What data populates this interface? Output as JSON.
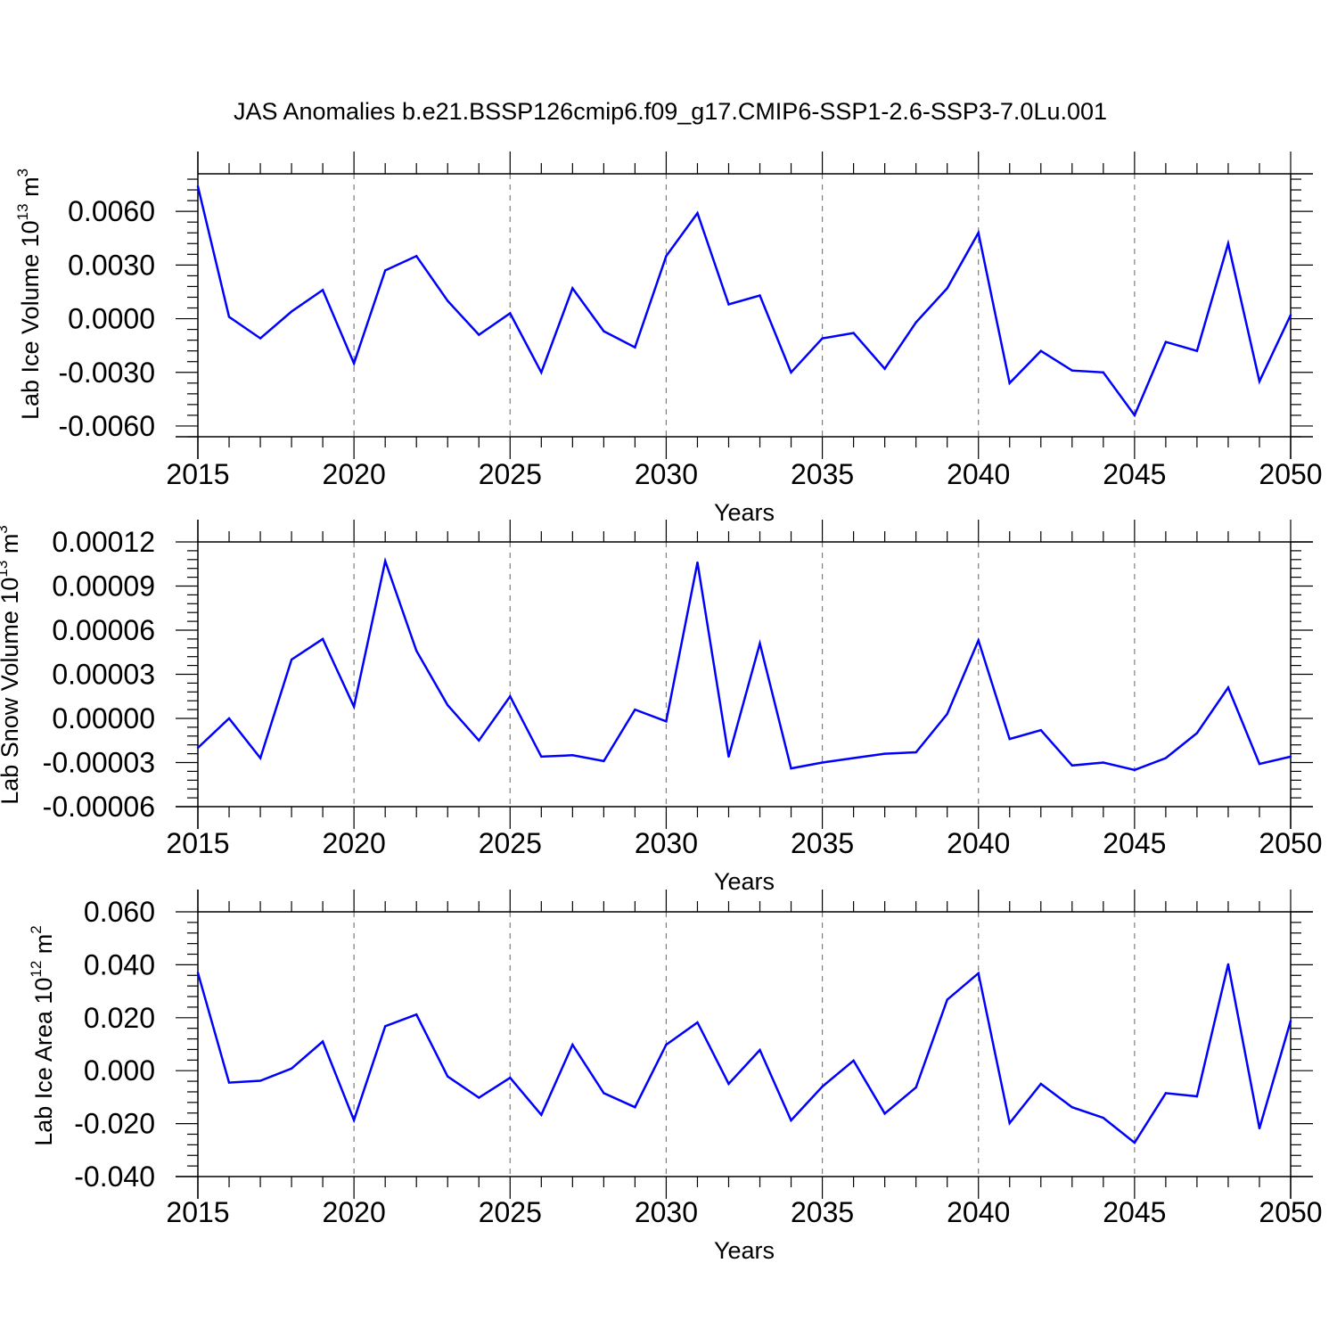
{
  "title": "JAS Anomalies b.e21.BSSP126cmip6.f09_g17.CMIP6-SSP1-2.6-SSP3-7.0Lu.001",
  "colors": {
    "line": "#0000ff",
    "axis": "#000000",
    "grid": "#7f7f7f"
  },
  "chart_data": [
    {
      "type": "line",
      "ylabel": "Lab Ice Volume 10",
      "ylabel_exp": "13",
      "ylabel_unit": " m",
      "ylabel_unit_exp": "3",
      "xlabel": "Years",
      "xlim": [
        2015,
        2050
      ],
      "ylim": [
        -0.0066,
        0.0081
      ],
      "yticks": [
        -0.006,
        -0.003,
        0.0,
        0.003,
        0.006
      ],
      "ytick_labels": [
        "-0.0060",
        "-0.0030",
        "0.0000",
        "0.0030",
        "0.0060"
      ],
      "xticks": [
        2015,
        2020,
        2025,
        2030,
        2035,
        2040,
        2045,
        2050
      ],
      "xtick_labels": [
        "2015",
        "2020",
        "2025",
        "2030",
        "2035",
        "2040",
        "2045",
        "2050"
      ],
      "x": [
        2015,
        2016,
        2017,
        2018,
        2019,
        2020,
        2021,
        2022,
        2023,
        2024,
        2025,
        2026,
        2027,
        2028,
        2029,
        2030,
        2031,
        2032,
        2033,
        2034,
        2035,
        2036,
        2037,
        2038,
        2039,
        2040,
        2041,
        2042,
        2043,
        2044,
        2045,
        2046,
        2047,
        2048,
        2049,
        2050
      ],
      "values": [
        0.0074,
        0.0001,
        -0.0011,
        0.0004,
        0.0016,
        -0.0025,
        0.0027,
        0.0035,
        0.001,
        -0.0009,
        0.0003,
        -0.003,
        0.0017,
        -0.0007,
        -0.0016,
        0.0035,
        0.0059,
        0.0008,
        0.0013,
        -0.003,
        -0.0011,
        -0.0008,
        -0.0028,
        -0.0002,
        0.0017,
        0.0048,
        -0.0036,
        -0.0018,
        -0.0029,
        -0.003,
        -0.0054,
        -0.0013,
        -0.0018,
        0.0042,
        -0.0035,
        0.0002
      ]
    },
    {
      "type": "line",
      "ylabel": "Lab Snow Volume 10",
      "ylabel_exp": "13",
      "ylabel_unit": " m",
      "ylabel_unit_exp": "3",
      "xlabel": "Years",
      "xlim": [
        2015,
        2050
      ],
      "ylim": [
        -6e-05,
        0.00012
      ],
      "yticks": [
        -6e-05,
        -3e-05,
        0.0,
        3e-05,
        6e-05,
        9e-05,
        0.00012
      ],
      "ytick_labels": [
        "-0.00006",
        "-0.00003",
        "0.00000",
        "0.00003",
        "0.00006",
        "0.00009",
        "0.00012"
      ],
      "xticks": [
        2015,
        2020,
        2025,
        2030,
        2035,
        2040,
        2045,
        2050
      ],
      "xtick_labels": [
        "2015",
        "2020",
        "2025",
        "2030",
        "2035",
        "2040",
        "2045",
        "2050"
      ],
      "x": [
        2015,
        2016,
        2017,
        2018,
        2019,
        2020,
        2021,
        2022,
        2023,
        2024,
        2025,
        2026,
        2027,
        2028,
        2029,
        2030,
        2031,
        2032,
        2033,
        2034,
        2035,
        2036,
        2037,
        2038,
        2039,
        2040,
        2041,
        2042,
        2043,
        2044,
        2045,
        2046,
        2047,
        2048,
        2049,
        2050
      ],
      "values": [
        -2e-05,
        0.0,
        -2.7e-05,
        4e-05,
        5.4e-05,
        8e-06,
        0.000107,
        4.6e-05,
        9e-06,
        -1.5e-05,
        1.5e-05,
        -2.6e-05,
        -2.5e-05,
        -2.9e-05,
        6e-06,
        -2e-06,
        0.000106,
        -2.6e-05,
        5.1e-05,
        -3.4e-05,
        -3e-05,
        -2.7e-05,
        -2.4e-05,
        -2.3e-05,
        3e-06,
        5.3e-05,
        -1.4e-05,
        -8e-06,
        -3.2e-05,
        -3e-05,
        -3.5e-05,
        -2.7e-05,
        -1e-05,
        2.1e-05,
        -3.1e-05,
        -2.6e-05
      ]
    },
    {
      "type": "line",
      "ylabel": "Lab Ice Area 10",
      "ylabel_exp": "12",
      "ylabel_unit": " m",
      "ylabel_unit_exp": "2",
      "xlabel": "Years",
      "xlim": [
        2015,
        2050
      ],
      "ylim": [
        -0.04,
        0.06
      ],
      "yticks": [
        -0.04,
        -0.02,
        0.0,
        0.02,
        0.04,
        0.06
      ],
      "ytick_labels": [
        "-0.040",
        "-0.020",
        "0.000",
        "0.020",
        "0.040",
        "0.060"
      ],
      "xticks": [
        2015,
        2020,
        2025,
        2030,
        2035,
        2040,
        2045,
        2050
      ],
      "xtick_labels": [
        "2015",
        "2020",
        "2025",
        "2030",
        "2035",
        "2040",
        "2045",
        "2050"
      ],
      "x": [
        2015,
        2016,
        2017,
        2018,
        2019,
        2020,
        2021,
        2022,
        2023,
        2024,
        2025,
        2026,
        2027,
        2028,
        2029,
        2030,
        2031,
        2032,
        2033,
        2034,
        2035,
        2036,
        2037,
        2038,
        2039,
        2040,
        2041,
        2042,
        2043,
        2044,
        2045,
        2046,
        2047,
        2048,
        2049,
        2050
      ],
      "values": [
        0.037,
        -0.0045,
        -0.0038,
        0.0008,
        0.011,
        -0.0187,
        0.0168,
        0.0212,
        -0.0022,
        -0.0102,
        -0.0027,
        -0.0167,
        0.0098,
        -0.0085,
        -0.0138,
        0.0098,
        0.0182,
        -0.005,
        0.0078,
        -0.0188,
        -0.006,
        0.0038,
        -0.0162,
        -0.0063,
        0.0268,
        0.0368,
        -0.0198,
        -0.005,
        -0.0138,
        -0.0178,
        -0.0272,
        -0.0085,
        -0.0097,
        0.0402,
        -0.0218,
        0.0188
      ]
    }
  ]
}
